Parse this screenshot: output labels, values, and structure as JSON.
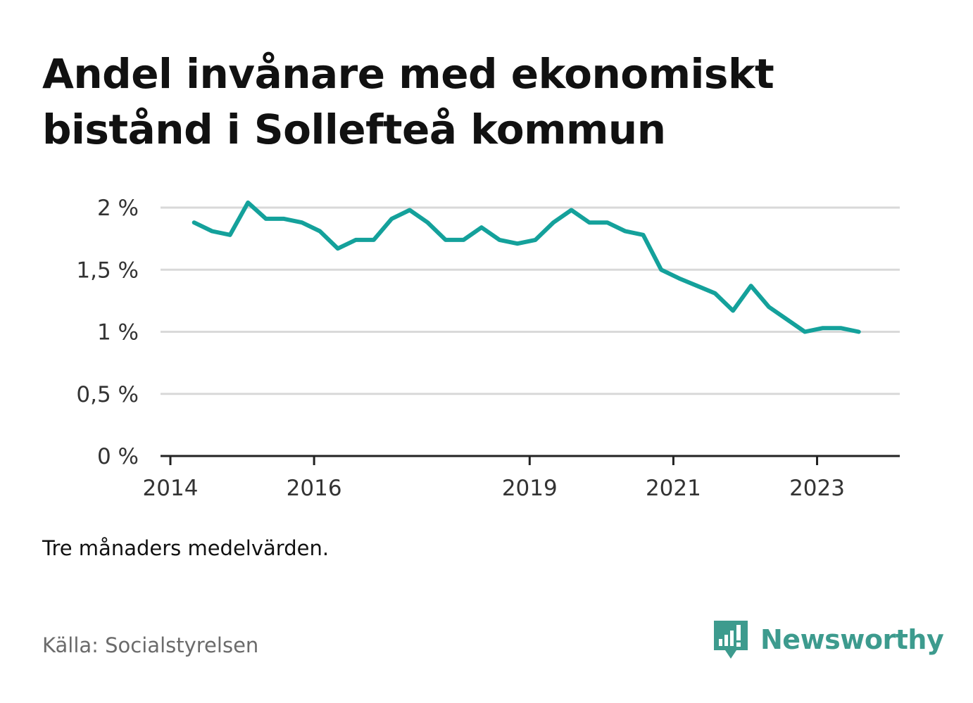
{
  "title": "Andel invånare med ekonomiskt bistånd i Sollefteå kommun",
  "note": "Tre månaders medelvärden.",
  "source": "Källa: Socialstyrelsen",
  "brand": {
    "name": "Newsworthy",
    "icon": "newsworthy-logo-icon",
    "color": "#3d9b8e"
  },
  "chart_data": {
    "type": "line",
    "title": "Andel invånare med ekonomiskt bistånd i Sollefteå kommun",
    "xlabel": "",
    "ylabel": "",
    "ylim": [
      0,
      2
    ],
    "y_ticks": [
      0,
      0.5,
      1,
      1.5,
      2
    ],
    "y_tick_labels": [
      "0 %",
      "0,5 %",
      "1 %",
      "1,5 %",
      "2 %"
    ],
    "x_ticks": [
      2014,
      2016,
      2019,
      2021,
      2023
    ],
    "x_tick_labels": [
      "2014",
      "2016",
      "2019",
      "2021",
      "2023"
    ],
    "grid": true,
    "line_color": "#14a19b",
    "series": [
      {
        "x": [
          2014.33,
          2014.58,
          2014.83,
          2015.08,
          2015.33,
          2015.58,
          2015.83,
          2016.08,
          2016.33,
          2016.58,
          2016.83,
          2017.08,
          2017.33,
          2017.58,
          2017.83,
          2018.08,
          2018.33,
          2018.58,
          2018.83,
          2019.08,
          2019.33,
          2019.58,
          2019.83,
          2020.08,
          2020.33,
          2020.58,
          2020.83,
          2021.08,
          2021.33,
          2021.58,
          2021.83,
          2022.08,
          2022.33,
          2022.58,
          2022.83,
          2023.08,
          2023.33,
          2023.58
        ],
        "values": [
          1.88,
          1.81,
          1.78,
          2.04,
          1.91,
          1.91,
          1.88,
          1.81,
          1.67,
          1.74,
          1.74,
          1.91,
          1.98,
          1.88,
          1.74,
          1.74,
          1.84,
          1.74,
          1.71,
          1.74,
          1.88,
          1.98,
          1.88,
          1.88,
          1.81,
          1.78,
          1.5,
          1.43,
          1.37,
          1.31,
          1.17,
          1.37,
          1.2,
          1.1,
          1.0,
          1.03,
          1.03,
          1.0
        ]
      }
    ]
  }
}
